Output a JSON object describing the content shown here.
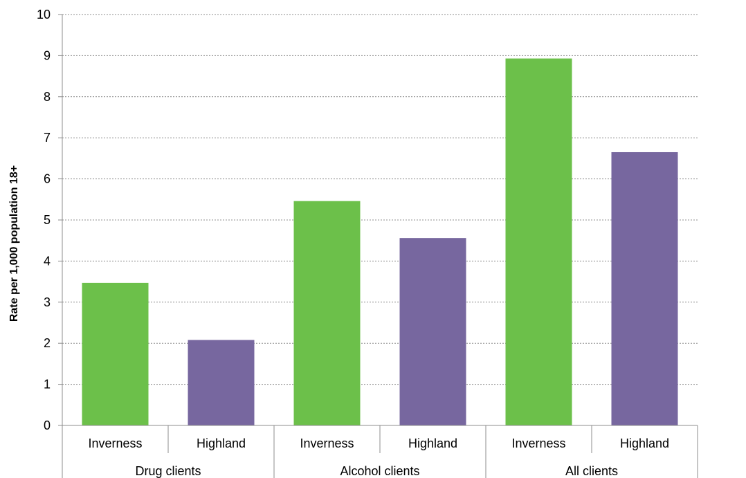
{
  "chart_data": {
    "type": "bar",
    "ylabel": "Rate per 1,000 population 18+",
    "ylim": [
      0,
      10
    ],
    "yticks": [
      "0",
      "1",
      "2",
      "3",
      "4",
      "5",
      "6",
      "7",
      "8",
      "9",
      "10"
    ],
    "grid": true,
    "groups": [
      {
        "label": "Drug clients",
        "bars": [
          {
            "label": "Inverness",
            "value": 3.47,
            "color": "#6cc04a"
          },
          {
            "label": "Highland",
            "value": 2.08,
            "color": "#77679f"
          }
        ]
      },
      {
        "label": "Alcohol clients",
        "bars": [
          {
            "label": "Inverness",
            "value": 5.46,
            "color": "#6cc04a"
          },
          {
            "label": "Highland",
            "value": 4.56,
            "color": "#77679f"
          }
        ]
      },
      {
        "label": "All clients",
        "bars": [
          {
            "label": "Inverness",
            "value": 8.93,
            "color": "#6cc04a"
          },
          {
            "label": "Highland",
            "value": 6.65,
            "color": "#77679f"
          }
        ]
      }
    ]
  }
}
